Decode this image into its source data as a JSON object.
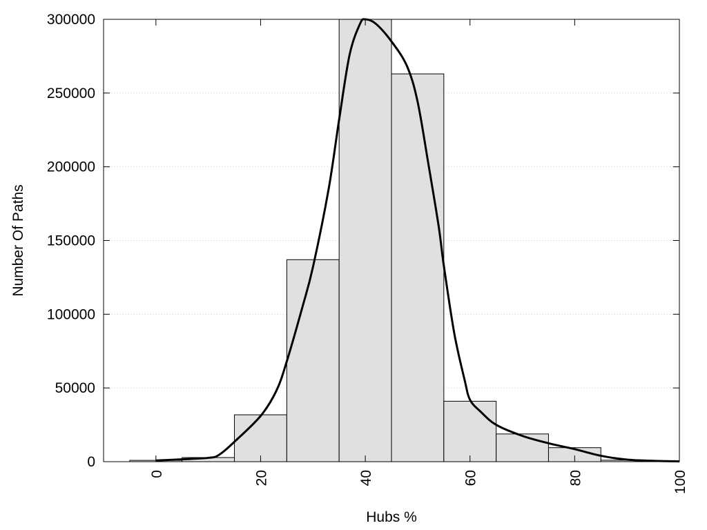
{
  "chart_data": {
    "type": "bar",
    "title": "",
    "xlabel": "Hubs %",
    "ylabel": "Number Of Paths",
    "xlim": [
      -10,
      100
    ],
    "ylim": [
      0,
      300000
    ],
    "x_ticks": [
      0,
      20,
      40,
      60,
      80,
      100
    ],
    "y_ticks": [
      0,
      50000,
      100000,
      150000,
      200000,
      250000,
      300000
    ],
    "grid": true,
    "bar_width": 10,
    "bars": [
      {
        "x": 0,
        "value": 900
      },
      {
        "x": 10,
        "value": 2800
      },
      {
        "x": 20,
        "value": 31800
      },
      {
        "x": 30,
        "value": 137000
      },
      {
        "x": 40,
        "value": 300000
      },
      {
        "x": 50,
        "value": 263000
      },
      {
        "x": 60,
        "value": 41000
      },
      {
        "x": 70,
        "value": 18800
      },
      {
        "x": 80,
        "value": 9500
      },
      {
        "x": 90,
        "value": 1000
      }
    ],
    "density_curve": {
      "x": [
        0,
        5,
        10,
        12,
        15,
        20,
        23,
        25,
        28,
        30,
        33,
        35,
        37,
        39,
        40,
        42,
        45,
        48,
        50,
        52,
        54,
        55,
        57,
        59,
        60,
        62,
        65,
        70,
        75,
        80,
        85,
        90,
        95,
        100
      ],
      "y": [
        800,
        1600,
        2600,
        4500,
        13500,
        31000,
        48000,
        68000,
        105000,
        132000,
        185000,
        232000,
        276000,
        297000,
        300000,
        297000,
        285000,
        268000,
        244000,
        203000,
        160000,
        133000,
        87000,
        55000,
        42000,
        34000,
        25000,
        17500,
        12500,
        8500,
        4000,
        1400,
        600,
        200
      ]
    }
  }
}
